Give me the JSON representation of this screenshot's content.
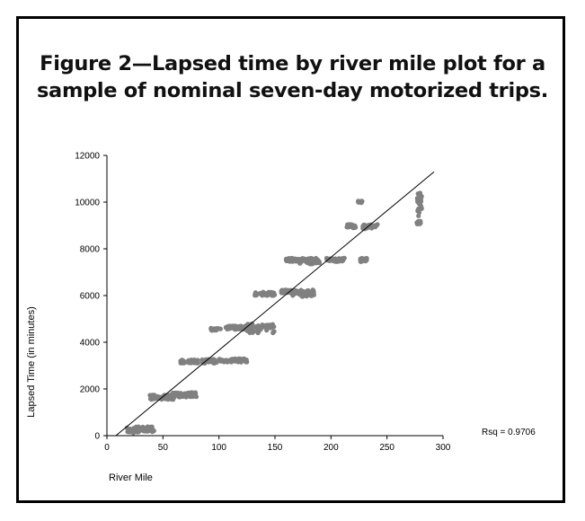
{
  "figure": {
    "title_line1": "Figure 2—Lapsed time by river mile plot for a",
    "title_line2": "sample of nominal seven-day motorized trips."
  },
  "colors": {
    "points": "#808080",
    "line": "#000000",
    "frame": "#000000"
  },
  "chart_data": {
    "type": "scatter",
    "title": "Figure 2—Lapsed time by river mile plot for a sample of nominal seven-day motorized trips.",
    "xlabel": "River Mile",
    "ylabel": "Lapsed Time (in minutes)",
    "xlim": [
      0,
      300
    ],
    "ylim": [
      0,
      12000
    ],
    "xticks": [
      0,
      50,
      100,
      150,
      200,
      250,
      300
    ],
    "yticks": [
      0,
      2000,
      4000,
      6000,
      8000,
      10000,
      12000
    ],
    "grid": false,
    "legend": "none",
    "annotation": "Rsq = 0.9706",
    "fit_line": {
      "x": [
        8,
        292
      ],
      "y": [
        0,
        11300
      ]
    },
    "clusters": [
      {
        "x": [
          18,
          26
        ],
        "y": [
          100,
          350
        ]
      },
      {
        "x": [
          26,
          42
        ],
        "y": [
          150,
          400
        ]
      },
      {
        "x": [
          38,
          60
        ],
        "y": [
          1550,
          1750
        ]
      },
      {
        "x": [
          55,
          80
        ],
        "y": [
          1650,
          1850
        ]
      },
      {
        "x": [
          65,
          82
        ],
        "y": [
          3100,
          3250
        ]
      },
      {
        "x": [
          85,
          98
        ],
        "y": [
          3100,
          3280
        ]
      },
      {
        "x": [
          92,
          102
        ],
        "y": [
          4500,
          4620
        ]
      },
      {
        "x": [
          100,
          125
        ],
        "y": [
          3150,
          3300
        ]
      },
      {
        "x": [
          105,
          125
        ],
        "y": [
          4550,
          4700
        ]
      },
      {
        "x": [
          125,
          150
        ],
        "y": [
          4400,
          4800
        ]
      },
      {
        "x": [
          132,
          150
        ],
        "y": [
          6000,
          6150
        ]
      },
      {
        "x": [
          155,
          165
        ],
        "y": [
          6100,
          6250
        ]
      },
      {
        "x": [
          160,
          172
        ],
        "y": [
          7450,
          7600
        ]
      },
      {
        "x": [
          165,
          185
        ],
        "y": [
          5950,
          6250
        ]
      },
      {
        "x": [
          172,
          190
        ],
        "y": [
          7350,
          7600
        ]
      },
      {
        "x": [
          196,
          212
        ],
        "y": [
          7450,
          7600
        ]
      },
      {
        "x": [
          214,
          222
        ],
        "y": [
          8900,
          9050
        ]
      },
      {
        "x": [
          224,
          228
        ],
        "y": [
          9950,
          10050
        ]
      },
      {
        "x": [
          226,
          232
        ],
        "y": [
          7450,
          7600
        ]
      },
      {
        "x": [
          228,
          242
        ],
        "y": [
          8850,
          9050
        ]
      },
      {
        "x": [
          276,
          280
        ],
        "y": [
          9050,
          9200
        ]
      },
      {
        "x": [
          277,
          281
        ],
        "y": [
          9400,
          10400
        ]
      }
    ]
  }
}
